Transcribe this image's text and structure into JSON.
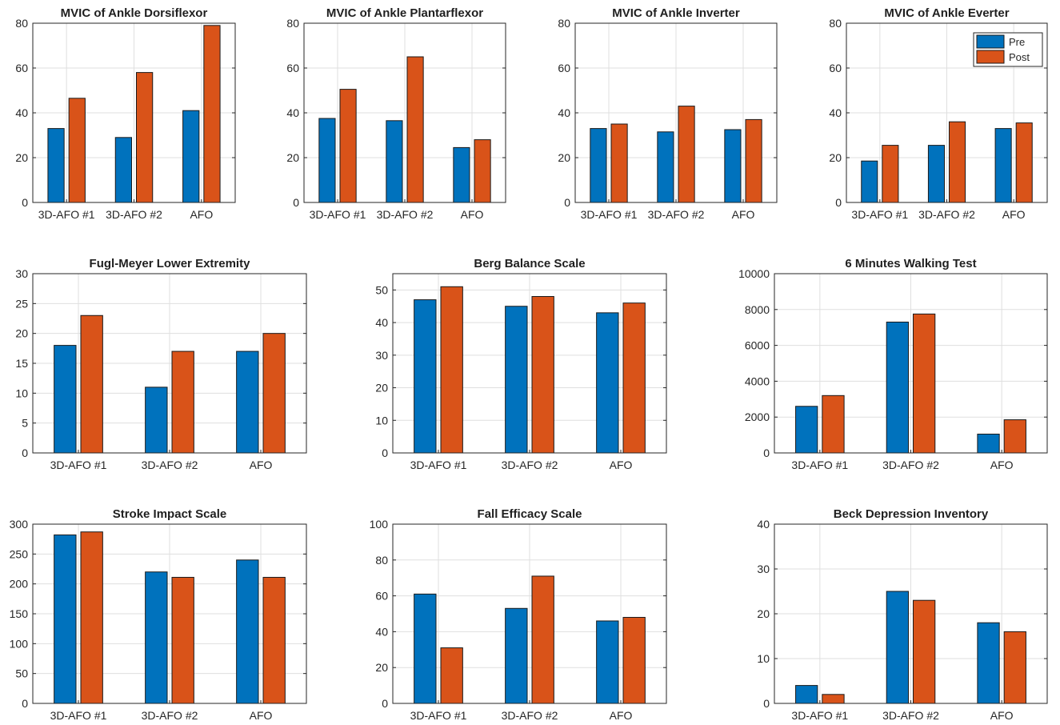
{
  "colors": {
    "pre": "#0072BD",
    "post": "#D95319",
    "grid": "#dfdfdf",
    "axis": "#262626"
  },
  "legend": {
    "placement": "top-right",
    "chart_index": 3,
    "entries": [
      "Pre",
      "Post"
    ]
  },
  "chart_data": [
    {
      "type": "bar",
      "title": "MVIC of Ankle Dorsiflexor",
      "categories": [
        "3D-AFO #1",
        "3D-AFO #2",
        "AFO"
      ],
      "ylim": [
        0,
        80
      ],
      "yticks": [
        0,
        20,
        40,
        60,
        80
      ],
      "series": [
        {
          "name": "Pre",
          "values": [
            33,
            29,
            41
          ]
        },
        {
          "name": "Post",
          "values": [
            46.5,
            58,
            79
          ]
        }
      ]
    },
    {
      "type": "bar",
      "title": "MVIC of Ankle Plantarflexor",
      "categories": [
        "3D-AFO #1",
        "3D-AFO #2",
        "AFO"
      ],
      "ylim": [
        0,
        80
      ],
      "yticks": [
        0,
        20,
        40,
        60,
        80
      ],
      "series": [
        {
          "name": "Pre",
          "values": [
            37.5,
            36.5,
            24.5
          ]
        },
        {
          "name": "Post",
          "values": [
            50.5,
            65,
            28
          ]
        }
      ]
    },
    {
      "type": "bar",
      "title": "MVIC of Ankle Inverter",
      "categories": [
        "3D-AFO #1",
        "3D-AFO #2",
        "AFO"
      ],
      "ylim": [
        0,
        80
      ],
      "yticks": [
        0,
        20,
        40,
        60,
        80
      ],
      "series": [
        {
          "name": "Pre",
          "values": [
            33,
            31.5,
            32.5
          ]
        },
        {
          "name": "Post",
          "values": [
            35,
            43,
            37
          ]
        }
      ]
    },
    {
      "type": "bar",
      "title": "MVIC of Ankle Everter",
      "categories": [
        "3D-AFO #1",
        "3D-AFO #2",
        "AFO"
      ],
      "ylim": [
        0,
        80
      ],
      "yticks": [
        0,
        20,
        40,
        60,
        80
      ],
      "series": [
        {
          "name": "Pre",
          "values": [
            18.5,
            25.5,
            33
          ]
        },
        {
          "name": "Post",
          "values": [
            25.5,
            36,
            35.5
          ]
        }
      ]
    },
    {
      "type": "bar",
      "title": "Fugl-Meyer Lower Extremity",
      "categories": [
        "3D-AFO #1",
        "3D-AFO #2",
        "AFO"
      ],
      "ylim": [
        0,
        30
      ],
      "yticks": [
        0,
        5,
        10,
        15,
        20,
        25,
        30
      ],
      "series": [
        {
          "name": "Pre",
          "values": [
            18,
            11,
            17
          ]
        },
        {
          "name": "Post",
          "values": [
            23,
            17,
            20
          ]
        }
      ]
    },
    {
      "type": "bar",
      "title": "Berg Balance Scale",
      "categories": [
        "3D-AFO #1",
        "3D-AFO #2",
        "AFO"
      ],
      "ylim": [
        0,
        55
      ],
      "yticks": [
        0,
        10,
        20,
        30,
        40,
        50
      ],
      "series": [
        {
          "name": "Pre",
          "values": [
            47,
            45,
            43
          ]
        },
        {
          "name": "Post",
          "values": [
            51,
            48,
            46
          ]
        }
      ]
    },
    {
      "type": "bar",
      "title": "6 Minutes Walking Test",
      "categories": [
        "3D-AFO #1",
        "3D-AFO #2",
        "AFO"
      ],
      "ylim": [
        0,
        10000
      ],
      "yticks": [
        0,
        2000,
        4000,
        6000,
        8000,
        10000
      ],
      "series": [
        {
          "name": "Pre",
          "values": [
            2600,
            7300,
            1050
          ]
        },
        {
          "name": "Post",
          "values": [
            3200,
            7750,
            1850
          ]
        }
      ]
    },
    {
      "type": "bar",
      "title": "Stroke Impact Scale",
      "categories": [
        "3D-AFO #1",
        "3D-AFO #2",
        "AFO"
      ],
      "ylim": [
        0,
        300
      ],
      "yticks": [
        0,
        50,
        100,
        150,
        200,
        250,
        300
      ],
      "series": [
        {
          "name": "Pre",
          "values": [
            282,
            220,
            240
          ]
        },
        {
          "name": "Post",
          "values": [
            287,
            211,
            211
          ]
        }
      ]
    },
    {
      "type": "bar",
      "title": "Fall Efficacy Scale",
      "categories": [
        "3D-AFO #1",
        "3D-AFO #2",
        "AFO"
      ],
      "ylim": [
        0,
        100
      ],
      "yticks": [
        0,
        20,
        40,
        60,
        80,
        100
      ],
      "series": [
        {
          "name": "Pre",
          "values": [
            61,
            53,
            46
          ]
        },
        {
          "name": "Post",
          "values": [
            31,
            71,
            48
          ]
        }
      ]
    },
    {
      "type": "bar",
      "title": "Beck Depression Inventory",
      "categories": [
        "3D-AFO #1",
        "3D-AFO #2",
        "AFO"
      ],
      "ylim": [
        0,
        40
      ],
      "yticks": [
        0,
        10,
        20,
        30,
        40
      ],
      "series": [
        {
          "name": "Pre",
          "values": [
            4,
            25,
            18
          ]
        },
        {
          "name": "Post",
          "values": [
            2,
            23,
            16
          ]
        }
      ]
    }
  ]
}
